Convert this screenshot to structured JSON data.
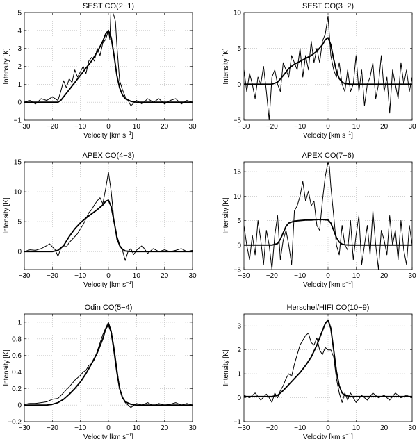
{
  "figure": {
    "xlabel_main": "Velocity [km s",
    "xlabel_sup": "−1",
    "xlabel_end": "]",
    "ylabel": "Intensity [K]"
  },
  "chart_data": [
    {
      "type": "line",
      "title": "SEST CO(2−1)",
      "xlim": [
        -30,
        30
      ],
      "ylim": [
        -1,
        5
      ],
      "xticks": [
        -30,
        -20,
        -10,
        0,
        10,
        20,
        30
      ],
      "yticks": [
        -1,
        0,
        1,
        2,
        3,
        4,
        5
      ],
      "grid": true,
      "series": [
        {
          "role": "observed",
          "x": [
            -30,
            -28,
            -26,
            -24,
            -22,
            -20,
            -18,
            -17,
            -16,
            -15,
            -14,
            -13,
            -12,
            -11,
            -10,
            -9,
            -8,
            -7,
            -6,
            -5,
            -4,
            -3,
            -2,
            -1,
            0,
            0.5,
            1,
            1.5,
            2,
            2.5,
            3,
            4,
            5,
            6,
            7,
            8,
            10,
            12,
            14,
            16,
            18,
            20,
            22,
            24,
            26,
            28,
            30
          ],
          "y": [
            0,
            0.1,
            -0.1,
            0.2,
            0.1,
            0.3,
            0.1,
            0.6,
            1.2,
            0.8,
            1.3,
            1.1,
            1.8,
            1.4,
            1.7,
            2.0,
            1.6,
            2.3,
            2.5,
            2.3,
            3.0,
            2.6,
            3.3,
            3.5,
            4.0,
            3.5,
            5.5,
            5.0,
            4.8,
            4.5,
            3.2,
            1.2,
            0.7,
            0.3,
            0.1,
            -0.2,
            0.1,
            -0.1,
            0.2,
            0,
            0.2,
            -0.1,
            0.1,
            0.2,
            -0.1,
            0.1,
            0
          ]
        },
        {
          "role": "model",
          "x": [
            -30,
            -20,
            -18,
            -17,
            -15,
            -12,
            -10,
            -8,
            -6,
            -4,
            -2,
            -1,
            0,
            1,
            2,
            3,
            4,
            5,
            6,
            8,
            10,
            12,
            15,
            20,
            25,
            30
          ],
          "y": [
            0,
            0,
            0,
            0.1,
            0.5,
            1.1,
            1.5,
            1.9,
            2.3,
            2.8,
            3.4,
            3.8,
            4.0,
            3.6,
            2.6,
            1.5,
            0.8,
            0.4,
            0.2,
            0.05,
            0,
            0,
            0,
            0,
            0,
            0
          ]
        }
      ]
    },
    {
      "type": "line",
      "title": "SEST CO(3−2)",
      "xlim": [
        -30,
        30
      ],
      "ylim": [
        -5,
        10
      ],
      "xticks": [
        -30,
        -20,
        -10,
        0,
        10,
        20,
        30
      ],
      "yticks": [
        -5,
        0,
        5,
        10
      ],
      "grid": true,
      "series": [
        {
          "role": "observed",
          "x": [
            -30,
            -29,
            -28,
            -27,
            -26,
            -25,
            -24,
            -23,
            -22,
            -21,
            -20,
            -19,
            -18,
            -17,
            -16,
            -15,
            -14,
            -13,
            -12,
            -11,
            -10,
            -9,
            -8,
            -7,
            -6,
            -5,
            -4,
            -3,
            -2,
            -1,
            0,
            1,
            2,
            3,
            4,
            5,
            6,
            7,
            8,
            9,
            10,
            11,
            12,
            13,
            14,
            15,
            16,
            17,
            18,
            19,
            20,
            21,
            22,
            23,
            24,
            25,
            26,
            27,
            28,
            29,
            30
          ],
          "y": [
            2,
            -1,
            1.5,
            0,
            -2,
            1,
            0,
            2.5,
            -1,
            -5,
            1,
            2,
            0,
            -1,
            3,
            2,
            1,
            4,
            3,
            2,
            5,
            1,
            4,
            2,
            6,
            3,
            5,
            3,
            6,
            7,
            9.5,
            4,
            2,
            1,
            3,
            0,
            -1,
            2,
            -1,
            0,
            4,
            -1,
            2,
            -3,
            0,
            1,
            3,
            -2,
            0,
            4,
            -1,
            1,
            -4,
            2,
            0,
            -2,
            3,
            0,
            2,
            -1,
            1
          ]
        },
        {
          "role": "model",
          "x": [
            -30,
            -22,
            -20,
            -18,
            -16,
            -14,
            -12,
            -10,
            -8,
            -6,
            -4,
            -2,
            -1,
            0,
            1,
            2,
            3,
            4,
            5,
            6,
            8,
            10,
            15,
            20,
            30
          ],
          "y": [
            0,
            0,
            0,
            0.3,
            1.2,
            2.2,
            2.8,
            3.2,
            3.6,
            4.0,
            4.6,
            5.5,
            6.2,
            6.5,
            5.5,
            3.5,
            1.8,
            0.8,
            0.3,
            0.1,
            0,
            0,
            0,
            0,
            0
          ]
        }
      ]
    },
    {
      "type": "line",
      "title": "APEX CO(4−3)",
      "xlim": [
        -30,
        30
      ],
      "ylim": [
        -3,
        15
      ],
      "xticks": [
        -30,
        -20,
        -10,
        0,
        10,
        20,
        30
      ],
      "yticks": [
        0,
        5,
        10,
        15
      ],
      "grid": true,
      "series": [
        {
          "role": "observed",
          "x": [
            -30,
            -28,
            -26,
            -24,
            -22,
            -21,
            -20,
            -19,
            -18,
            -17,
            -16,
            -15,
            -14,
            -13,
            -12,
            -11,
            -10,
            -9,
            -8,
            -7,
            -6,
            -5,
            -4,
            -3,
            -2,
            -1,
            0,
            1,
            2,
            3,
            4,
            5,
            6,
            7,
            8,
            9,
            10,
            12,
            14,
            16,
            18,
            20,
            22,
            24,
            26,
            28,
            30
          ],
          "y": [
            0,
            0.3,
            0.2,
            0.5,
            1.0,
            1.3,
            0.8,
            0.3,
            -0.8,
            0.5,
            1.0,
            0.8,
            1.5,
            2.0,
            2.5,
            3.0,
            3.8,
            4.5,
            5.5,
            6.5,
            7.0,
            7.8,
            8.5,
            9.0,
            8.0,
            10.5,
            13.3,
            10.0,
            5.0,
            2.0,
            1.0,
            0.2,
            -1.5,
            0,
            0.5,
            -0.5,
            0.2,
            1.0,
            -0.3,
            0.5,
            0,
            0.3,
            0,
            0.2,
            0.5,
            0,
            0.2
          ]
        },
        {
          "role": "model",
          "x": [
            -30,
            -22,
            -20,
            -18,
            -16,
            -14,
            -12,
            -10,
            -8,
            -6,
            -4,
            -2,
            -1,
            0,
            1,
            2,
            3,
            4,
            5,
            6,
            8,
            10,
            15,
            20,
            30
          ],
          "y": [
            0,
            0,
            0,
            0.2,
            1.0,
            2.5,
            3.8,
            4.8,
            5.6,
            6.3,
            7.0,
            7.8,
            8.4,
            8.6,
            7.5,
            5.0,
            2.5,
            1.0,
            0.4,
            0.1,
            0,
            0,
            0,
            0,
            0
          ]
        }
      ]
    },
    {
      "type": "line",
      "title": "APEX CO(7−6)",
      "xlim": [
        -30,
        30
      ],
      "ylim": [
        -5,
        17
      ],
      "xticks": [
        -30,
        -20,
        -10,
        0,
        10,
        20,
        30
      ],
      "yticks": [
        -5,
        0,
        5,
        10,
        15
      ],
      "grid": true,
      "series": [
        {
          "role": "observed",
          "x": [
            -30,
            -29,
            -28,
            -27,
            -26,
            -25,
            -24,
            -23,
            -22,
            -21,
            -20,
            -19,
            -18,
            -17,
            -16,
            -15,
            -14,
            -13,
            -12,
            -11,
            -10,
            -9,
            -8,
            -7,
            -6,
            -5,
            -4,
            -3,
            -2,
            -1,
            0,
            0.5,
            1,
            2,
            3,
            4,
            5,
            6,
            7,
            8,
            9,
            10,
            11,
            12,
            13,
            14,
            15,
            16,
            17,
            18,
            19,
            20,
            21,
            22,
            23,
            24,
            25,
            26,
            27,
            28,
            29,
            30
          ],
          "y": [
            4,
            0,
            -3,
            2,
            -2,
            5,
            1,
            -4,
            3,
            0,
            -5,
            2,
            6,
            -3,
            1,
            3,
            0,
            -4,
            7,
            8,
            10,
            13,
            9,
            11,
            8,
            9,
            4,
            3,
            9,
            14,
            17,
            16,
            12,
            6,
            0,
            -2,
            4,
            0,
            -1,
            5,
            -3,
            2,
            6,
            -4,
            0,
            4,
            -2,
            7,
            0,
            -5,
            3,
            1,
            -2,
            6,
            0,
            3,
            -3,
            5,
            -1,
            -4,
            4,
            0
          ]
        },
        {
          "role": "model",
          "x": [
            -30,
            -22,
            -20,
            -18,
            -17,
            -16,
            -15,
            -14,
            -12,
            -10,
            -8,
            -6,
            -4,
            -2,
            0,
            1,
            2,
            3,
            4,
            5,
            6,
            8,
            10,
            15,
            20,
            30
          ],
          "y": [
            0,
            0,
            0,
            0.3,
            1.2,
            2.5,
            3.8,
            4.5,
            4.9,
            5.0,
            5.1,
            5.1,
            5.2,
            5.2,
            5.1,
            4.5,
            3.0,
            1.5,
            0.6,
            0.2,
            0.05,
            0,
            0,
            0,
            0,
            0
          ]
        }
      ]
    },
    {
      "type": "line",
      "title": "Odin CO(5−4)",
      "xlim": [
        -30,
        30
      ],
      "ylim": [
        -0.2,
        1.1
      ],
      "xticks": [
        -30,
        -20,
        -10,
        0,
        10,
        20,
        30
      ],
      "yticks": [
        -0.2,
        0,
        0.2,
        0.4,
        0.6,
        0.8,
        1
      ],
      "grid": true,
      "series": [
        {
          "role": "observed",
          "x": [
            -30,
            -28,
            -26,
            -24,
            -22,
            -20,
            -18,
            -16,
            -14,
            -12,
            -10,
            -9,
            -8,
            -7,
            -6,
            -5,
            -4,
            -3,
            -2,
            -1,
            0,
            1,
            2,
            3,
            4,
            5,
            6,
            8,
            10,
            12,
            14,
            16,
            18,
            20,
            22,
            24,
            26,
            28,
            30
          ],
          "y": [
            0.01,
            0.02,
            0.02,
            0.03,
            0.04,
            0.07,
            0.08,
            0.15,
            0.22,
            0.3,
            0.36,
            0.4,
            0.42,
            0.48,
            0.5,
            0.55,
            0.65,
            0.75,
            0.85,
            0.93,
            1.0,
            0.9,
            0.7,
            0.45,
            0.2,
            0.1,
            0.03,
            -0.03,
            0.02,
            0.0,
            0.03,
            -0.01,
            0.02,
            0.0,
            0.01,
            0.03,
            0.0,
            0.02,
            0.0
          ]
        },
        {
          "role": "model",
          "x": [
            -30,
            -22,
            -20,
            -18,
            -16,
            -14,
            -12,
            -10,
            -8,
            -6,
            -4,
            -2,
            -1,
            0,
            1,
            2,
            3,
            4,
            5,
            6,
            8,
            10,
            15,
            20,
            30
          ],
          "y": [
            0,
            0,
            0.01,
            0.03,
            0.07,
            0.13,
            0.2,
            0.28,
            0.38,
            0.5,
            0.63,
            0.8,
            0.92,
            0.97,
            0.88,
            0.65,
            0.4,
            0.2,
            0.09,
            0.04,
            0.01,
            0,
            0,
            0,
            0
          ]
        }
      ]
    },
    {
      "type": "line",
      "title": "Herschel/HIFI CO(10−9)",
      "xlim": [
        -30,
        30
      ],
      "ylim": [
        -1,
        3.5
      ],
      "xticks": [
        -30,
        -20,
        -10,
        0,
        10,
        20,
        30
      ],
      "yticks": [
        -1,
        0,
        1,
        2,
        3
      ],
      "grid": true,
      "series": [
        {
          "role": "observed",
          "x": [
            -30,
            -28,
            -26,
            -24,
            -22,
            -21,
            -20,
            -19,
            -18,
            -17,
            -16,
            -15,
            -14,
            -13,
            -12,
            -11,
            -10,
            -9,
            -8,
            -7,
            -6,
            -5,
            -4,
            -3,
            -2,
            -1,
            0,
            1,
            2,
            3,
            4,
            5,
            6,
            7,
            8,
            9,
            10,
            12,
            14,
            16,
            18,
            20,
            22,
            24,
            26,
            28,
            30
          ],
          "y": [
            0.1,
            0,
            0.2,
            -0.1,
            0.15,
            0,
            -0.2,
            0.2,
            0,
            0.3,
            0.5,
            0.8,
            1.0,
            0.9,
            1.4,
            1.8,
            2.2,
            2.4,
            2.6,
            2.7,
            2.3,
            2.2,
            2.5,
            2.0,
            1.8,
            2.1,
            2.0,
            2.0,
            1.7,
            0.8,
            0.2,
            -0.2,
            0.2,
            -0.1,
            0.2,
            0.0,
            -0.2,
            0.1,
            -0.1,
            0.2,
            0,
            0.1,
            -0.1,
            0.2,
            0,
            0.1,
            0
          ]
        },
        {
          "role": "model",
          "x": [
            -30,
            -22,
            -20,
            -18,
            -16,
            -14,
            -12,
            -10,
            -8,
            -6,
            -4,
            -3,
            -2,
            -1,
            0,
            1,
            2,
            3,
            4,
            5,
            6,
            8,
            10,
            15,
            20,
            30
          ],
          "y": [
            0.05,
            0.05,
            0.05,
            0.1,
            0.3,
            0.55,
            0.8,
            1.05,
            1.35,
            1.7,
            2.2,
            2.5,
            2.8,
            3.1,
            3.25,
            2.9,
            2.0,
            1.1,
            0.5,
            0.2,
            0.1,
            0.05,
            0.05,
            0.05,
            0.05,
            0.05
          ]
        }
      ]
    }
  ]
}
